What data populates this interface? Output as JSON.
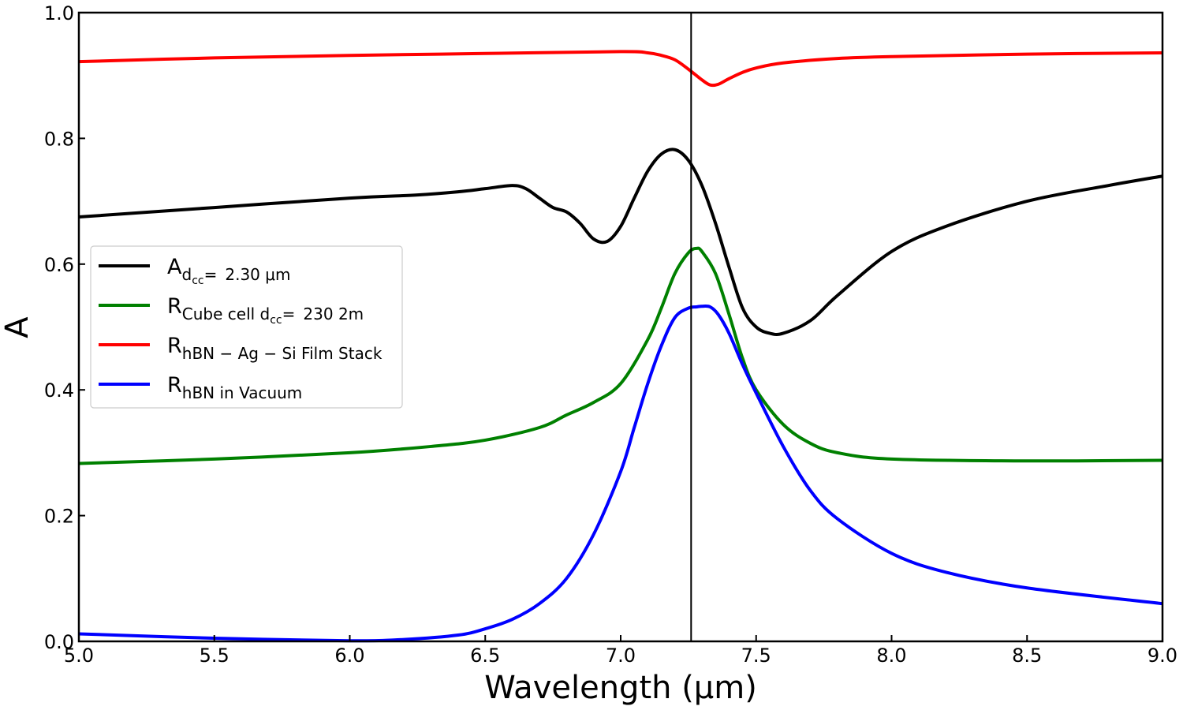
{
  "chart_data": {
    "type": "line",
    "title": "",
    "xlabel": "Wavelength (μm)",
    "ylabel": "A",
    "xlim": [
      5.0,
      9.0
    ],
    "ylim": [
      0.0,
      1.0
    ],
    "xticks": [
      "5.0",
      "5.5",
      "6.0",
      "6.5",
      "7.0",
      "7.5",
      "8.0",
      "8.5",
      "9.0"
    ],
    "yticks": [
      "0.0",
      "0.2",
      "0.4",
      "0.6",
      "0.8",
      "1.0"
    ],
    "grid": false,
    "legend_position": "center-left",
    "vertical_line_x": 7.26,
    "series": [
      {
        "name": "A",
        "label_main": "A",
        "label_sub": "d",
        "label_subsub": "cc",
        "label_sub_tail": "=",
        "label_value": "2.30 μm",
        "color": "#000000",
        "x": [
          5.0,
          5.5,
          6.0,
          6.25,
          6.4,
          6.5,
          6.6,
          6.65,
          6.7,
          6.75,
          6.8,
          6.85,
          6.9,
          6.95,
          7.0,
          7.05,
          7.1,
          7.15,
          7.2,
          7.25,
          7.3,
          7.35,
          7.4,
          7.45,
          7.5,
          7.55,
          7.6,
          7.7,
          7.8,
          8.0,
          8.2,
          8.5,
          8.8,
          9.0
        ],
        "y": [
          0.675,
          0.69,
          0.705,
          0.71,
          0.715,
          0.72,
          0.725,
          0.72,
          0.705,
          0.69,
          0.683,
          0.665,
          0.64,
          0.636,
          0.66,
          0.705,
          0.748,
          0.775,
          0.782,
          0.765,
          0.725,
          0.665,
          0.595,
          0.53,
          0.5,
          0.49,
          0.49,
          0.51,
          0.55,
          0.62,
          0.66,
          0.7,
          0.725,
          0.74
        ]
      },
      {
        "name": "R",
        "label_main": "R",
        "label_sub": "Cube cell d",
        "label_subsub": "cc",
        "label_sub_tail": "=",
        "label_value": "230 2m",
        "color": "#008000",
        "x": [
          5.0,
          5.5,
          6.0,
          6.3,
          6.5,
          6.7,
          6.8,
          6.9,
          7.0,
          7.1,
          7.15,
          7.2,
          7.25,
          7.28,
          7.3,
          7.35,
          7.4,
          7.45,
          7.5,
          7.6,
          7.7,
          7.8,
          8.0,
          8.5,
          9.0
        ],
        "y": [
          0.283,
          0.29,
          0.3,
          0.31,
          0.32,
          0.34,
          0.36,
          0.38,
          0.41,
          0.48,
          0.53,
          0.585,
          0.618,
          0.625,
          0.62,
          0.585,
          0.52,
          0.45,
          0.4,
          0.345,
          0.315,
          0.3,
          0.29,
          0.287,
          0.288
        ]
      },
      {
        "name": "R",
        "label_main": "R",
        "label_sub": "hBN − Ag − Si Film Stack",
        "label_subsub": "",
        "label_sub_tail": "",
        "label_value": "",
        "color": "#ff0000",
        "x": [
          5.0,
          5.5,
          6.0,
          6.5,
          7.0,
          7.1,
          7.15,
          7.2,
          7.25,
          7.3,
          7.33,
          7.36,
          7.4,
          7.45,
          7.5,
          7.6,
          7.8,
          8.0,
          8.5,
          9.0
        ],
        "y": [
          0.922,
          0.928,
          0.932,
          0.935,
          0.938,
          0.936,
          0.932,
          0.925,
          0.91,
          0.893,
          0.885,
          0.886,
          0.895,
          0.905,
          0.912,
          0.92,
          0.927,
          0.93,
          0.934,
          0.936
        ]
      },
      {
        "name": "R",
        "label_main": "R",
        "label_sub": "hBN in Vacuum",
        "label_subsub": "",
        "label_sub_tail": "",
        "label_value": "",
        "color": "#0000ff",
        "x": [
          5.0,
          5.5,
          6.0,
          6.2,
          6.4,
          6.5,
          6.6,
          6.7,
          6.8,
          6.9,
          7.0,
          7.05,
          7.1,
          7.15,
          7.2,
          7.25,
          7.28,
          7.3,
          7.33,
          7.36,
          7.4,
          7.45,
          7.5,
          7.6,
          7.7,
          7.8,
          8.0,
          8.2,
          8.5,
          9.0
        ],
        "y": [
          0.012,
          0.005,
          0.001,
          0.003,
          0.01,
          0.02,
          0.035,
          0.06,
          0.1,
          0.17,
          0.27,
          0.34,
          0.41,
          0.47,
          0.515,
          0.53,
          0.532,
          0.533,
          0.532,
          0.52,
          0.49,
          0.44,
          0.395,
          0.31,
          0.24,
          0.195,
          0.14,
          0.11,
          0.085,
          0.06
        ]
      }
    ]
  }
}
